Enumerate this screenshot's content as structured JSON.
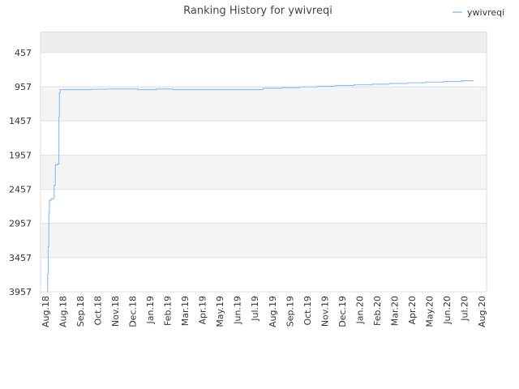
{
  "chart_data": {
    "type": "line",
    "title": "Ranking History for ywivreqi",
    "xlabel": "",
    "ylabel": "",
    "legend": {
      "position": "top-right",
      "entries": [
        "ywivreqi"
      ]
    },
    "y_inverted": true,
    "ylim": [
      3957,
      157
    ],
    "y_ticks": [
      457,
      957,
      1457,
      1957,
      2457,
      2957,
      3457,
      3957
    ],
    "x_tick_labels": [
      "Aug.18",
      "Aug.18",
      "Sep.18",
      "Oct.18",
      "Nov.18",
      "Dec.18",
      "Jan.19",
      "Feb.19",
      "Mar.19",
      "Apr.19",
      "May.19",
      "Jun.19",
      "Jul.19",
      "Aug.19",
      "Sep.19",
      "Oct.19",
      "Nov.19",
      "Dec.19",
      "Jan.20",
      "Feb.20",
      "Mar.20",
      "Apr.20",
      "May.20",
      "Jun.20",
      "Jul.20",
      "Aug.20"
    ],
    "grid": true,
    "alternating_bands": true,
    "series": [
      {
        "name": "ywivreqi",
        "color": "#8ec3f0",
        "points": [
          [
            "2018-08-01",
            3957
          ],
          [
            "2018-08-02",
            3700
          ],
          [
            "2018-08-03",
            3300
          ],
          [
            "2018-08-04",
            2800
          ],
          [
            "2018-08-05",
            2620
          ],
          [
            "2018-08-08",
            2600
          ],
          [
            "2018-08-12",
            2590
          ],
          [
            "2018-08-13",
            2400
          ],
          [
            "2018-08-15",
            2100
          ],
          [
            "2018-08-19",
            2090
          ],
          [
            "2018-08-21",
            1400
          ],
          [
            "2018-08-22",
            1050
          ],
          [
            "2018-08-23",
            1000
          ],
          [
            "2018-09-15",
            1000
          ],
          [
            "2018-10-15",
            995
          ],
          [
            "2018-11-10",
            990
          ],
          [
            "2018-12-15",
            990
          ],
          [
            "2019-01-01",
            1000
          ],
          [
            "2019-02-01",
            992
          ],
          [
            "2019-03-01",
            1000
          ],
          [
            "2019-04-01",
            1000
          ],
          [
            "2019-05-01",
            1000
          ],
          [
            "2019-06-01",
            1000
          ],
          [
            "2019-07-01",
            1000
          ],
          [
            "2019-08-01",
            980
          ],
          [
            "2019-09-01",
            970
          ],
          [
            "2019-10-01",
            960
          ],
          [
            "2019-11-01",
            950
          ],
          [
            "2019-12-01",
            940
          ],
          [
            "2020-01-01",
            930
          ],
          [
            "2020-02-01",
            920
          ],
          [
            "2020-03-01",
            910
          ],
          [
            "2020-04-01",
            900
          ],
          [
            "2020-05-01",
            890
          ],
          [
            "2020-06-01",
            880
          ],
          [
            "2020-07-01",
            870
          ],
          [
            "2020-07-20",
            860
          ]
        ]
      }
    ]
  }
}
